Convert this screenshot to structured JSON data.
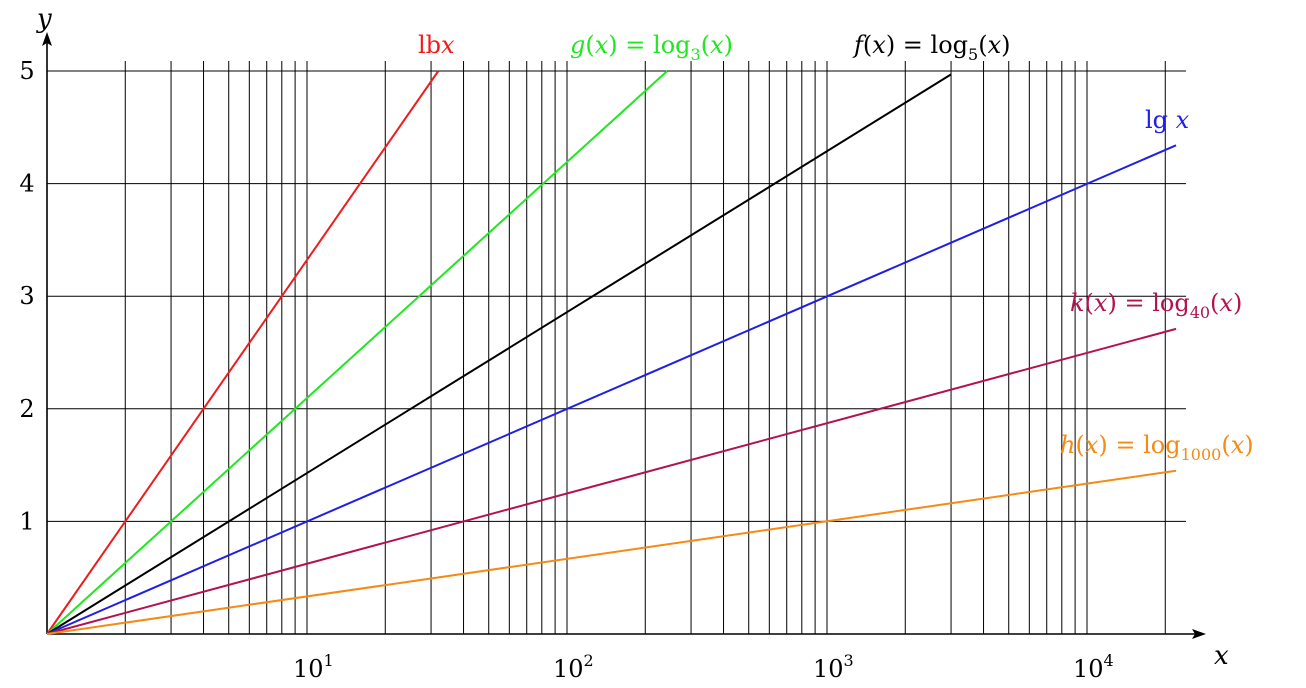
{
  "chart_data": {
    "type": "line",
    "x_scale": "log",
    "xlim": [
      1,
      22000
    ],
    "ylim": [
      0,
      5.3
    ],
    "grid": true,
    "xlabel": "x",
    "ylabel": "y",
    "x_tick_labels": [
      {
        "x": 10,
        "base": "10",
        "exp": "1"
      },
      {
        "x": 100,
        "base": "10",
        "exp": "2"
      },
      {
        "x": 1000,
        "base": "10",
        "exp": "3"
      },
      {
        "x": 10000,
        "base": "10",
        "exp": "4"
      }
    ],
    "y_ticks": [
      1,
      2,
      3,
      4,
      5
    ],
    "y_tick_labels": [
      "1",
      "2",
      "3",
      "4",
      "5"
    ],
    "series": [
      {
        "label": [
          "lb",
          "x"
        ],
        "base": 2,
        "x": [
          1,
          32
        ],
        "y": [
          0,
          5
        ],
        "color": "#ee1c1c"
      },
      {
        "label": [
          "g(x) = log",
          "3",
          "(x)"
        ],
        "base": 3,
        "x": [
          1,
          243
        ],
        "y": [
          0,
          5
        ],
        "color": "#1fe81f"
      },
      {
        "label": [
          "f(x) = log",
          "5",
          "(x)"
        ],
        "base": 5,
        "x": [
          1,
          3000
        ],
        "y": [
          0,
          4.97
        ],
        "color": "#000000"
      },
      {
        "label": [
          "lg ",
          "x"
        ],
        "base": 10,
        "x": [
          1,
          22000
        ],
        "y": [
          0,
          4.34
        ],
        "color": "#1f1fe6"
      },
      {
        "label": [
          "k(x) = log",
          "40",
          "(x)"
        ],
        "base": 40,
        "x": [
          1,
          22000
        ],
        "y": [
          0,
          2.71
        ],
        "color": "#b3124f"
      },
      {
        "label": [
          "h(x) = log",
          "1000",
          "(x)"
        ],
        "base": 1000,
        "x": [
          1,
          22000
        ],
        "y": [
          0,
          1.45
        ],
        "color": "#f58a14"
      }
    ]
  }
}
